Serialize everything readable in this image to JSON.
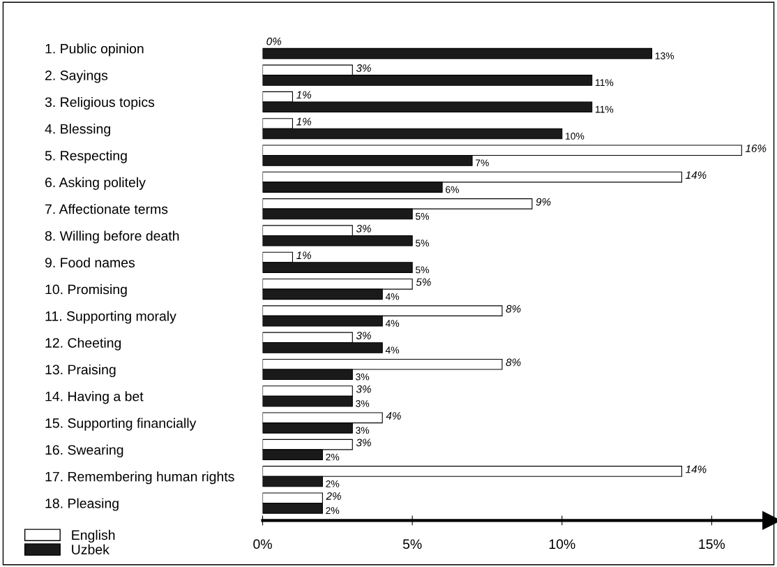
{
  "chart_data": {
    "type": "bar",
    "orientation": "horizontal",
    "categories": [
      "1. Public opinion",
      "2. Sayings",
      "3. Religious topics",
      "4. Blessing",
      "5. Respecting",
      "6. Asking politely",
      "7. Affectionate terms",
      "8. Willing before death",
      "9. Food names",
      "10. Promising",
      "11. Supporting moraly",
      "12. Cheeting",
      "13. Praising",
      "14. Having a bet",
      "15. Supporting financially",
      "16. Swearing",
      "17. Remembering human rights",
      "18. Pleasing"
    ],
    "series": [
      {
        "name": "English",
        "color": "#ffffff",
        "values": [
          0,
          3,
          1,
          1,
          16,
          14,
          9,
          3,
          1,
          5,
          8,
          3,
          8,
          3,
          4,
          3,
          14,
          2
        ],
        "value_labels": [
          "0%",
          "3%",
          "1%",
          "1%",
          "16%",
          "14%",
          "9%",
          "3%",
          "1%",
          "5%",
          "8%",
          "3%",
          "8%",
          "3%",
          "4%",
          "3%",
          "14%",
          "2%"
        ]
      },
      {
        "name": "Uzbek",
        "color": "#1a1a1a",
        "values": [
          13,
          11,
          11,
          10,
          7,
          6,
          5,
          5,
          5,
          4,
          4,
          4,
          3,
          3,
          3,
          2,
          2,
          2
        ],
        "value_labels": [
          "13%",
          "11%",
          "11%",
          "10%",
          "7%",
          "6%",
          "5%",
          "5%",
          "5%",
          "4%",
          "4%",
          "4%",
          "3%",
          "3%",
          "3%",
          "2%",
          "2%",
          "2%"
        ]
      }
    ],
    "xlim": [
      0,
      17
    ],
    "xticks": [
      {
        "value": 0,
        "label": "0%"
      },
      {
        "value": 5,
        "label": "5%"
      },
      {
        "value": 10,
        "label": "10%"
      },
      {
        "value": 15,
        "label": "15%"
      }
    ],
    "legend": "bottom left",
    "grid": false
  }
}
